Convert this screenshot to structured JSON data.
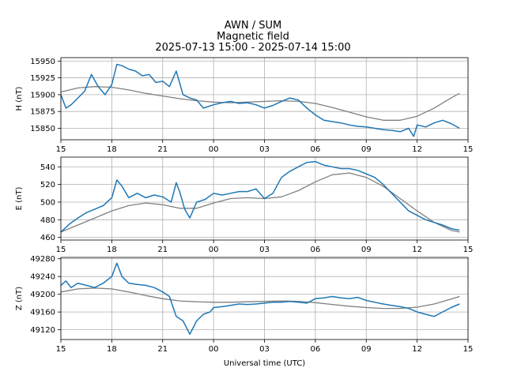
{
  "header": {
    "station": "AWN / SUM",
    "subtitle": "Magnetic field",
    "range": "2025-07-13 15:00 - 2025-07-14 15:00"
  },
  "chart_data": {
    "type": "line",
    "title": "AWN / SUM Magnetic field 2025-07-13 15:00 - 2025-07-14 15:00",
    "xlabel": "Universal time (UTC)",
    "x_ticks": [
      "15",
      "18",
      "21",
      "00",
      "03",
      "06",
      "09",
      "12",
      "15"
    ],
    "x_range_hours": [
      15,
      39
    ],
    "colors": {
      "measured": "#1f77b4",
      "baseline": "#808080"
    },
    "panels": [
      {
        "name": "H",
        "ylabel": "H (nT)",
        "ylim": [
          15833,
          15955
        ],
        "yticks": [
          15850,
          15875,
          15900,
          15925,
          15950
        ],
        "series": [
          {
            "name": "measured",
            "x": [
              15.0,
              15.3,
              15.6,
              16.0,
              16.4,
              16.8,
              17.2,
              17.6,
              18.0,
              18.3,
              18.6,
              19.0,
              19.4,
              19.8,
              20.2,
              20.6,
              21.0,
              21.4,
              21.8,
              22.2,
              22.6,
              23.0,
              23.4,
              24.0,
              24.5,
              25.0,
              25.5,
              26.0,
              26.5,
              27.0,
              27.5,
              28.0,
              28.5,
              29.0,
              29.5,
              30.0,
              30.5,
              31.0,
              31.5,
              32.0,
              32.5,
              33.0,
              33.5,
              34.0,
              34.5,
              35.0,
              35.5,
              35.8,
              36.0,
              36.5,
              37.0,
              37.5,
              38.0,
              38.5
            ],
            "y": [
              15900,
              15880,
              15885,
              15895,
              15905,
              15930,
              15912,
              15900,
              15915,
              15945,
              15943,
              15938,
              15935,
              15928,
              15930,
              15918,
              15920,
              15912,
              15935,
              15900,
              15895,
              15892,
              15880,
              15885,
              15888,
              15890,
              15887,
              15888,
              15885,
              15880,
              15884,
              15890,
              15895,
              15892,
              15880,
              15870,
              15862,
              15860,
              15858,
              15855,
              15853,
              15852,
              15850,
              15848,
              15847,
              15845,
              15850,
              15838,
              15855,
              15852,
              15858,
              15862,
              15857,
              15850
            ]
          },
          {
            "name": "baseline",
            "x": [
              15,
              16,
              17,
              18,
              19,
              20,
              21,
              22,
              23,
              24,
              25,
              26,
              27,
              28,
              29,
              30,
              31,
              32,
              33,
              34,
              35,
              36,
              37,
              38,
              38.5
            ],
            "y": [
              15904,
              15910,
              15912,
              15911,
              15907,
              15902,
              15898,
              15894,
              15891,
              15889,
              15888,
              15889,
              15890,
              15891,
              15890,
              15887,
              15881,
              15874,
              15867,
              15862,
              15862,
              15868,
              15880,
              15895,
              15902
            ]
          }
        ]
      },
      {
        "name": "E",
        "ylabel": "E (nT)",
        "ylim": [
          457,
          551
        ],
        "yticks": [
          460,
          480,
          500,
          520,
          540
        ],
        "series": [
          {
            "name": "measured",
            "x": [
              15.0,
              15.5,
              16.0,
              16.5,
              17.0,
              17.5,
              18.0,
              18.3,
              18.6,
              19.0,
              19.5,
              20.0,
              20.5,
              21.0,
              21.5,
              21.8,
              22.0,
              22.3,
              22.6,
              23.0,
              23.5,
              24.0,
              24.5,
              25.0,
              25.5,
              26.0,
              26.5,
              27.0,
              27.5,
              28.0,
              28.5,
              29.0,
              29.5,
              30.0,
              30.5,
              31.0,
              31.5,
              32.0,
              32.5,
              33.0,
              33.5,
              34.0,
              34.5,
              35.0,
              35.5,
              36.0,
              36.5,
              37.0,
              37.5,
              38.0,
              38.5
            ],
            "y": [
              466,
              475,
              482,
              488,
              492,
              496,
              505,
              525,
              518,
              505,
              510,
              505,
              508,
              506,
              500,
              522,
              512,
              492,
              482,
              500,
              503,
              510,
              508,
              510,
              512,
              512,
              515,
              504,
              510,
              528,
              535,
              540,
              545,
              546,
              542,
              540,
              538,
              538,
              536,
              532,
              528,
              520,
              510,
              500,
              490,
              485,
              480,
              477,
              474,
              470,
              468
            ]
          },
          {
            "name": "baseline",
            "x": [
              15,
              16,
              17,
              18,
              19,
              20,
              21,
              22,
              23,
              24,
              25,
              26,
              27,
              28,
              29,
              30,
              31,
              32,
              33,
              34,
              35,
              36,
              37,
              38,
              38.5
            ],
            "y": [
              466,
              474,
              482,
              490,
              496,
              499,
              497,
              493,
              493,
              499,
              504,
              505,
              504,
              506,
              513,
              523,
              531,
              533,
              528,
              518,
              504,
              490,
              477,
              468,
              466
            ]
          }
        ]
      },
      {
        "name": "Z",
        "ylabel": "Z (nT)",
        "ylim": [
          49098,
          49283
        ],
        "yticks": [
          49120,
          49160,
          49200,
          49240,
          49280
        ],
        "series": [
          {
            "name": "measured",
            "x": [
              15.0,
              15.3,
              15.6,
              16.0,
              16.5,
              17.0,
              17.5,
              18.0,
              18.3,
              18.6,
              19.0,
              19.5,
              20.0,
              20.5,
              21.0,
              21.4,
              21.8,
              22.2,
              22.6,
              23.0,
              23.4,
              23.8,
              24.0,
              24.5,
              25.0,
              25.5,
              26.0,
              26.5,
              27.0,
              27.5,
              28.0,
              28.5,
              29.0,
              29.5,
              30.0,
              30.5,
              31.0,
              31.5,
              32.0,
              32.5,
              33.0,
              33.5,
              34.0,
              34.5,
              35.0,
              35.5,
              36.0,
              36.5,
              37.0,
              37.5,
              38.0,
              38.5
            ],
            "y": [
              49220,
              49230,
              49215,
              49225,
              49220,
              49215,
              49225,
              49240,
              49270,
              49240,
              49225,
              49222,
              49220,
              49215,
              49205,
              49195,
              49150,
              49140,
              49110,
              49140,
              49155,
              49160,
              49170,
              49172,
              49175,
              49178,
              49177,
              49178,
              49180,
              49182,
              49182,
              49184,
              49182,
              49180,
              49190,
              49192,
              49195,
              49192,
              49190,
              49193,
              49186,
              49182,
              49178,
              49175,
              49172,
              49168,
              49160,
              49155,
              49150,
              49160,
              49170,
              49178
            ]
          },
          {
            "name": "baseline",
            "x": [
              15,
              16,
              17,
              18,
              19,
              20,
              21,
              22,
              23,
              24,
              25,
              26,
              27,
              28,
              29,
              30,
              31,
              32,
              33,
              34,
              35,
              36,
              37,
              38,
              38.5
            ],
            "y": [
              49205,
              49212,
              49214,
              49212,
              49205,
              49197,
              49190,
              49185,
              49183,
              49182,
              49182,
              49183,
              49184,
              49185,
              49184,
              49181,
              49177,
              49173,
              49170,
              49168,
              49168,
              49171,
              49178,
              49189,
              49195
            ]
          }
        ]
      }
    ]
  }
}
